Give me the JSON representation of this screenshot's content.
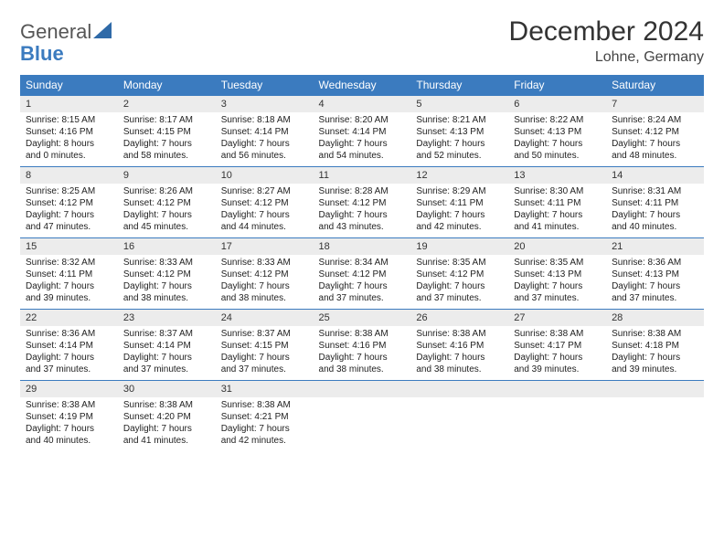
{
  "logo": {
    "top": "General",
    "bottom": "Blue",
    "icon_color": "#2f6aa8"
  },
  "title": "December 2024",
  "location": "Lohne, Germany",
  "colors": {
    "header_bg": "#3b7bbf",
    "header_text": "#ffffff",
    "daynum_bg": "#ececec",
    "daynum_border": "#3b7bbf",
    "body_bg": "#ffffff",
    "text": "#222222"
  },
  "typography": {
    "title_fontsize": 30,
    "location_fontsize": 16,
    "weekday_fontsize": 12,
    "cell_fontsize": 10
  },
  "weekdays": [
    "Sunday",
    "Monday",
    "Tuesday",
    "Wednesday",
    "Thursday",
    "Friday",
    "Saturday"
  ],
  "weeks": [
    [
      {
        "n": "1",
        "sr": "Sunrise: 8:15 AM",
        "ss": "Sunset: 4:16 PM",
        "d1": "Daylight: 8 hours",
        "d2": "and 0 minutes."
      },
      {
        "n": "2",
        "sr": "Sunrise: 8:17 AM",
        "ss": "Sunset: 4:15 PM",
        "d1": "Daylight: 7 hours",
        "d2": "and 58 minutes."
      },
      {
        "n": "3",
        "sr": "Sunrise: 8:18 AM",
        "ss": "Sunset: 4:14 PM",
        "d1": "Daylight: 7 hours",
        "d2": "and 56 minutes."
      },
      {
        "n": "4",
        "sr": "Sunrise: 8:20 AM",
        "ss": "Sunset: 4:14 PM",
        "d1": "Daylight: 7 hours",
        "d2": "and 54 minutes."
      },
      {
        "n": "5",
        "sr": "Sunrise: 8:21 AM",
        "ss": "Sunset: 4:13 PM",
        "d1": "Daylight: 7 hours",
        "d2": "and 52 minutes."
      },
      {
        "n": "6",
        "sr": "Sunrise: 8:22 AM",
        "ss": "Sunset: 4:13 PM",
        "d1": "Daylight: 7 hours",
        "d2": "and 50 minutes."
      },
      {
        "n": "7",
        "sr": "Sunrise: 8:24 AM",
        "ss": "Sunset: 4:12 PM",
        "d1": "Daylight: 7 hours",
        "d2": "and 48 minutes."
      }
    ],
    [
      {
        "n": "8",
        "sr": "Sunrise: 8:25 AM",
        "ss": "Sunset: 4:12 PM",
        "d1": "Daylight: 7 hours",
        "d2": "and 47 minutes."
      },
      {
        "n": "9",
        "sr": "Sunrise: 8:26 AM",
        "ss": "Sunset: 4:12 PM",
        "d1": "Daylight: 7 hours",
        "d2": "and 45 minutes."
      },
      {
        "n": "10",
        "sr": "Sunrise: 8:27 AM",
        "ss": "Sunset: 4:12 PM",
        "d1": "Daylight: 7 hours",
        "d2": "and 44 minutes."
      },
      {
        "n": "11",
        "sr": "Sunrise: 8:28 AM",
        "ss": "Sunset: 4:12 PM",
        "d1": "Daylight: 7 hours",
        "d2": "and 43 minutes."
      },
      {
        "n": "12",
        "sr": "Sunrise: 8:29 AM",
        "ss": "Sunset: 4:11 PM",
        "d1": "Daylight: 7 hours",
        "d2": "and 42 minutes."
      },
      {
        "n": "13",
        "sr": "Sunrise: 8:30 AM",
        "ss": "Sunset: 4:11 PM",
        "d1": "Daylight: 7 hours",
        "d2": "and 41 minutes."
      },
      {
        "n": "14",
        "sr": "Sunrise: 8:31 AM",
        "ss": "Sunset: 4:11 PM",
        "d1": "Daylight: 7 hours",
        "d2": "and 40 minutes."
      }
    ],
    [
      {
        "n": "15",
        "sr": "Sunrise: 8:32 AM",
        "ss": "Sunset: 4:11 PM",
        "d1": "Daylight: 7 hours",
        "d2": "and 39 minutes."
      },
      {
        "n": "16",
        "sr": "Sunrise: 8:33 AM",
        "ss": "Sunset: 4:12 PM",
        "d1": "Daylight: 7 hours",
        "d2": "and 38 minutes."
      },
      {
        "n": "17",
        "sr": "Sunrise: 8:33 AM",
        "ss": "Sunset: 4:12 PM",
        "d1": "Daylight: 7 hours",
        "d2": "and 38 minutes."
      },
      {
        "n": "18",
        "sr": "Sunrise: 8:34 AM",
        "ss": "Sunset: 4:12 PM",
        "d1": "Daylight: 7 hours",
        "d2": "and 37 minutes."
      },
      {
        "n": "19",
        "sr": "Sunrise: 8:35 AM",
        "ss": "Sunset: 4:12 PM",
        "d1": "Daylight: 7 hours",
        "d2": "and 37 minutes."
      },
      {
        "n": "20",
        "sr": "Sunrise: 8:35 AM",
        "ss": "Sunset: 4:13 PM",
        "d1": "Daylight: 7 hours",
        "d2": "and 37 minutes."
      },
      {
        "n": "21",
        "sr": "Sunrise: 8:36 AM",
        "ss": "Sunset: 4:13 PM",
        "d1": "Daylight: 7 hours",
        "d2": "and 37 minutes."
      }
    ],
    [
      {
        "n": "22",
        "sr": "Sunrise: 8:36 AM",
        "ss": "Sunset: 4:14 PM",
        "d1": "Daylight: 7 hours",
        "d2": "and 37 minutes."
      },
      {
        "n": "23",
        "sr": "Sunrise: 8:37 AM",
        "ss": "Sunset: 4:14 PM",
        "d1": "Daylight: 7 hours",
        "d2": "and 37 minutes."
      },
      {
        "n": "24",
        "sr": "Sunrise: 8:37 AM",
        "ss": "Sunset: 4:15 PM",
        "d1": "Daylight: 7 hours",
        "d2": "and 37 minutes."
      },
      {
        "n": "25",
        "sr": "Sunrise: 8:38 AM",
        "ss": "Sunset: 4:16 PM",
        "d1": "Daylight: 7 hours",
        "d2": "and 38 minutes."
      },
      {
        "n": "26",
        "sr": "Sunrise: 8:38 AM",
        "ss": "Sunset: 4:16 PM",
        "d1": "Daylight: 7 hours",
        "d2": "and 38 minutes."
      },
      {
        "n": "27",
        "sr": "Sunrise: 8:38 AM",
        "ss": "Sunset: 4:17 PM",
        "d1": "Daylight: 7 hours",
        "d2": "and 39 minutes."
      },
      {
        "n": "28",
        "sr": "Sunrise: 8:38 AM",
        "ss": "Sunset: 4:18 PM",
        "d1": "Daylight: 7 hours",
        "d2": "and 39 minutes."
      }
    ],
    [
      {
        "n": "29",
        "sr": "Sunrise: 8:38 AM",
        "ss": "Sunset: 4:19 PM",
        "d1": "Daylight: 7 hours",
        "d2": "and 40 minutes."
      },
      {
        "n": "30",
        "sr": "Sunrise: 8:38 AM",
        "ss": "Sunset: 4:20 PM",
        "d1": "Daylight: 7 hours",
        "d2": "and 41 minutes."
      },
      {
        "n": "31",
        "sr": "Sunrise: 8:38 AM",
        "ss": "Sunset: 4:21 PM",
        "d1": "Daylight: 7 hours",
        "d2": "and 42 minutes."
      },
      {
        "n": "",
        "sr": "",
        "ss": "",
        "d1": "",
        "d2": ""
      },
      {
        "n": "",
        "sr": "",
        "ss": "",
        "d1": "",
        "d2": ""
      },
      {
        "n": "",
        "sr": "",
        "ss": "",
        "d1": "",
        "d2": ""
      },
      {
        "n": "",
        "sr": "",
        "ss": "",
        "d1": "",
        "d2": ""
      }
    ]
  ]
}
